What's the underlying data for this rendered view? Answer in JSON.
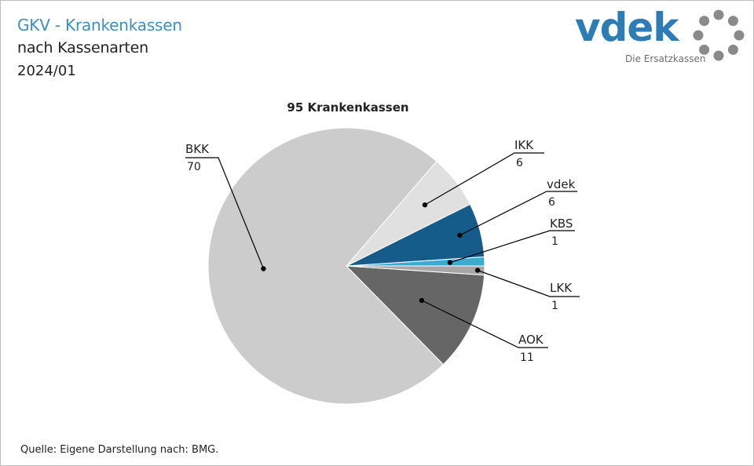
{
  "header": {
    "title": "GKV - Krankenkassen",
    "subtitle": "nach Kassenarten",
    "period": "2024/01"
  },
  "logo": {
    "word": "vdek",
    "tagline": "Die Ersatzkassen"
  },
  "footer": {
    "source": "Quelle: Eigene Darstellung nach: BMG."
  },
  "chart_data": {
    "type": "pie",
    "title": "95 Krankenkassen",
    "start_angle_deg": 0,
    "direction": "counterclockwise",
    "slices": [
      {
        "label": "KBS",
        "value": 1,
        "color": "#3aacd0"
      },
      {
        "label": "vdek",
        "value": 6,
        "color": "#165c8a"
      },
      {
        "label": "IKK",
        "value": 6,
        "color": "#e0e0e0"
      },
      {
        "label": "BKK",
        "value": 70,
        "color": "#cccccc"
      },
      {
        "label": "AOK",
        "value": 11,
        "color": "#666666"
      },
      {
        "label": "LKK",
        "value": 1,
        "color": "#a6a6a6"
      }
    ]
  }
}
